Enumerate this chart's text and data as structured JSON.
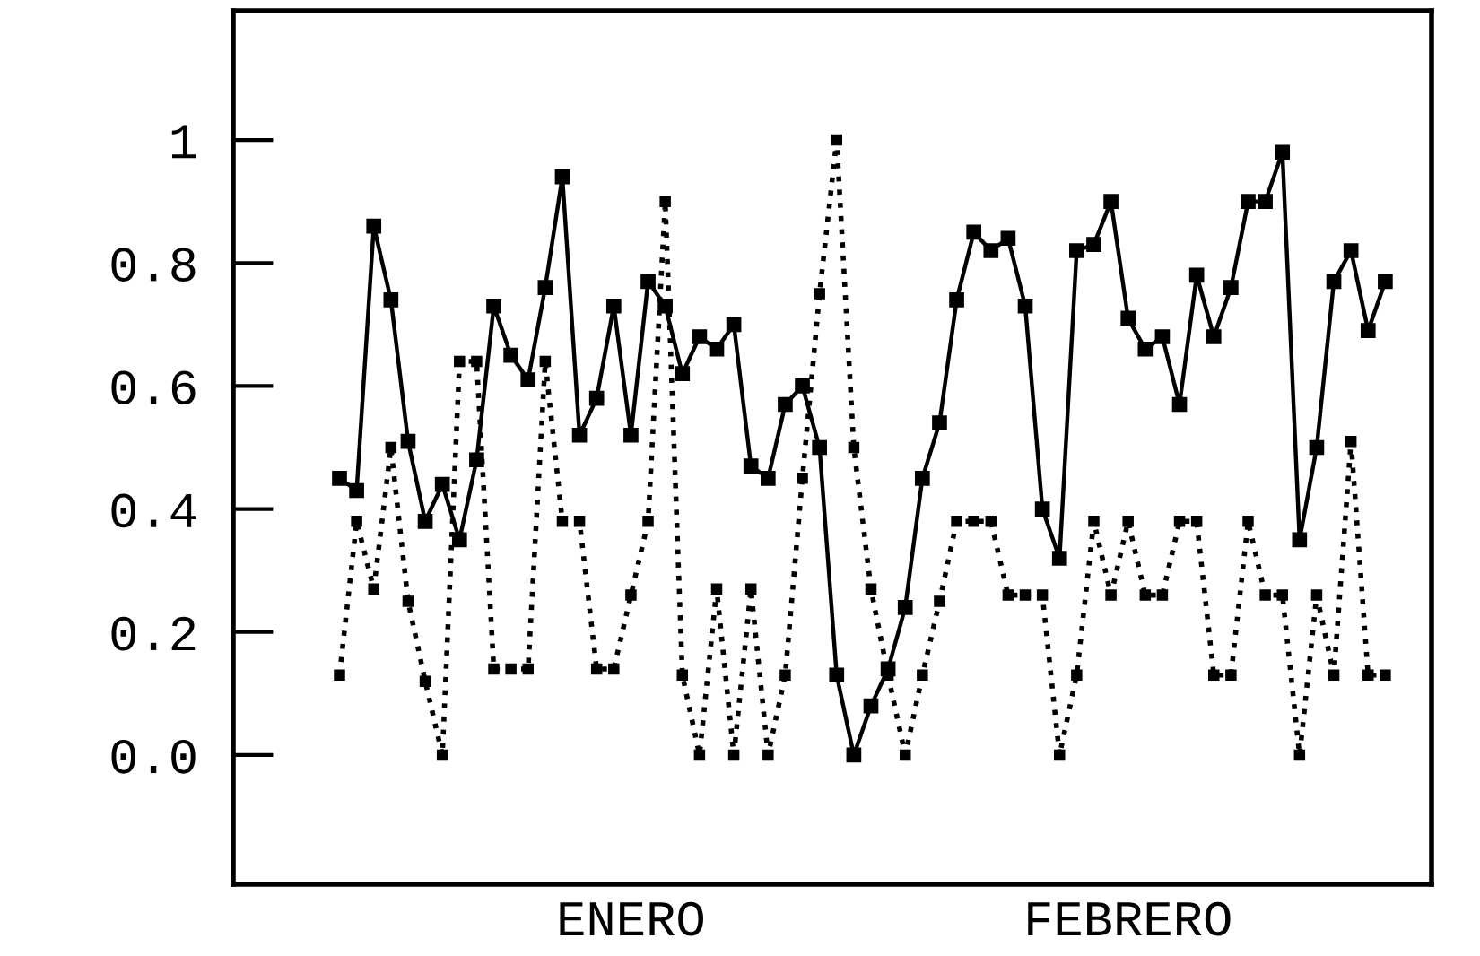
{
  "chart_data": {
    "type": "line",
    "categories": [
      null,
      null,
      null,
      null,
      null,
      null,
      null,
      null,
      null,
      null,
      null,
      null,
      null,
      null,
      null,
      null,
      null,
      "ENERO",
      null,
      null,
      null,
      null,
      null,
      null,
      null,
      null,
      null,
      null,
      null,
      null,
      null,
      null,
      null,
      null,
      null,
      null,
      null,
      null,
      null,
      null,
      null,
      null,
      null,
      null,
      null,
      null,
      "FEBRERO",
      null,
      null,
      null,
      null,
      null,
      null,
      null,
      null,
      null,
      null,
      null,
      null,
      null,
      null,
      null
    ],
    "ylim": [
      -0.21,
      1.21
    ],
    "yticks": [
      {
        "value": 0,
        "label": "0.0"
      },
      0.2,
      0.4,
      0.6,
      0.8,
      1
    ],
    "grid": false,
    "marker": "square",
    "series": [
      {
        "color": "#000000",
        "line_style": "solid",
        "values": [
          0.45,
          0.43,
          0.86,
          0.74,
          0.51,
          0.38,
          0.44,
          0.35,
          0.48,
          0.73,
          0.65,
          0.61,
          0.76,
          0.94,
          0.52,
          0.58,
          0.73,
          0.52,
          0.77,
          0.73,
          0.62,
          0.68,
          0.66,
          0.7,
          0.47,
          0.45,
          0.57,
          0.6,
          0.5,
          0.13,
          0.0,
          0.08,
          0.14,
          0.24,
          0.45,
          0.54,
          0.74,
          0.85,
          0.82,
          0.84,
          0.73,
          0.4,
          0.32,
          0.82,
          0.83,
          0.9,
          0.71,
          0.66,
          0.68,
          0.57,
          0.78,
          0.68,
          0.76,
          0.9,
          0.9,
          0.98,
          0.35,
          0.5,
          0.77,
          0.82,
          0.69,
          0.77
        ]
      },
      {
        "color": "#000000",
        "line_style": "dotted",
        "values": [
          0.13,
          0.38,
          0.27,
          0.5,
          0.25,
          0.12,
          0.0,
          0.64,
          0.64,
          0.14,
          0.14,
          0.14,
          0.64,
          0.38,
          0.38,
          0.14,
          0.14,
          0.26,
          0.38,
          0.9,
          0.13,
          0.0,
          0.27,
          0.0,
          0.27,
          0.0,
          0.13,
          0.45,
          0.75,
          1.0,
          0.5,
          0.27,
          0.13,
          0.0,
          0.13,
          0.25,
          0.38,
          0.38,
          0.38,
          0.26,
          0.26,
          0.26,
          0.0,
          0.13,
          0.38,
          0.26,
          0.38,
          0.26,
          0.26,
          0.38,
          0.38,
          0.13,
          0.13,
          0.38,
          0.26,
          0.26,
          0.0,
          0.26,
          0.13,
          0.51,
          0.13,
          0.13
        ]
      }
    ]
  }
}
